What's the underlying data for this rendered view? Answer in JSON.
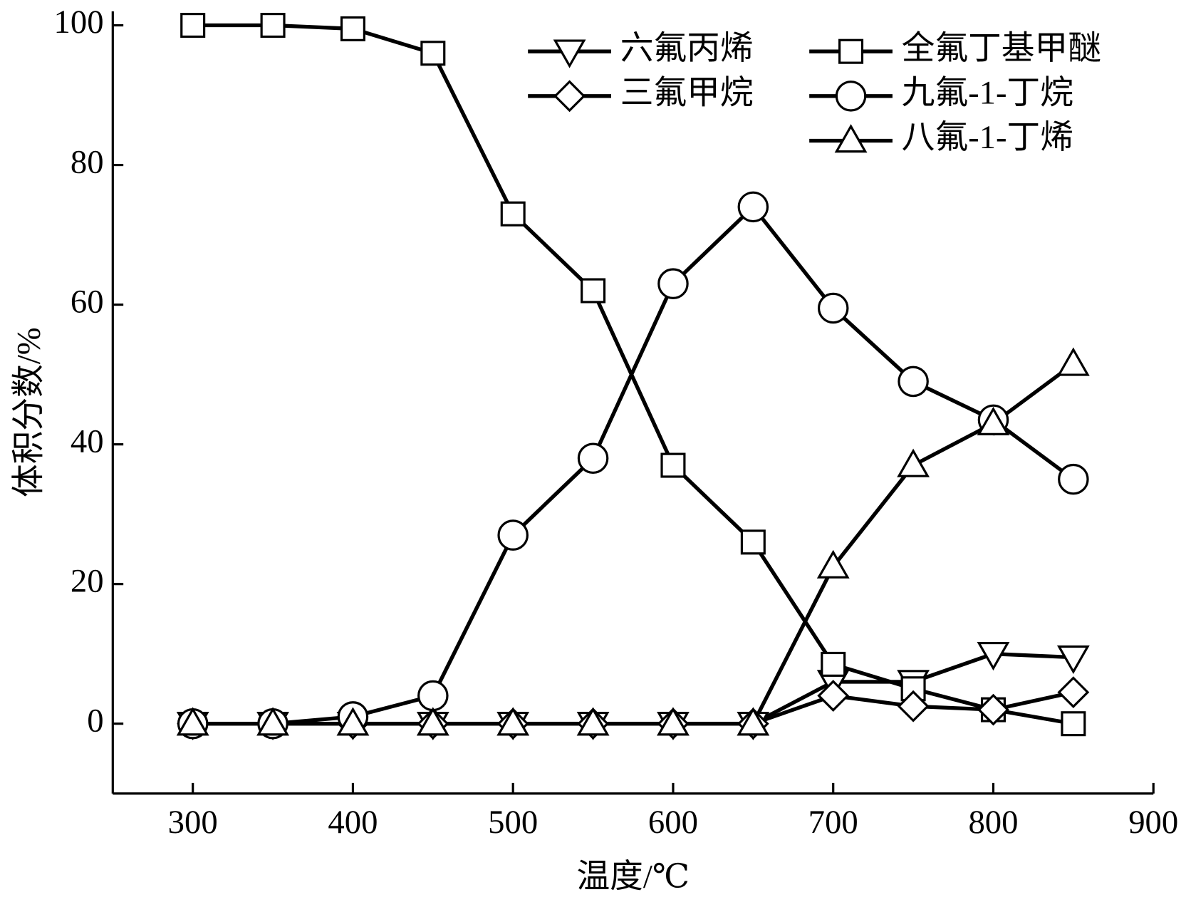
{
  "chart_data": {
    "type": "line",
    "xlabel": "温度/℃",
    "ylabel": "体积分数/%",
    "x": [
      300,
      350,
      400,
      450,
      500,
      550,
      600,
      650,
      700,
      750,
      800,
      850
    ],
    "series": [
      {
        "name": "六氟丙烯",
        "color": "#000000",
        "marker": "triangle-down",
        "values": [
          0,
          0,
          0,
          0,
          0,
          0,
          0,
          0,
          6,
          6,
          10,
          9.5
        ]
      },
      {
        "name": "全氟丁基甲醚",
        "color": "#000000",
        "marker": "square",
        "values": [
          100,
          100,
          99.5,
          96,
          73,
          62,
          37,
          26,
          8.5,
          5,
          2,
          0
        ]
      },
      {
        "name": "三氟甲烷",
        "color": "#000000",
        "marker": "diamond",
        "values": [
          0,
          0,
          0,
          0,
          0,
          0,
          0,
          0,
          4,
          2.5,
          2,
          4.5
        ]
      },
      {
        "name": "九氟-1-丁烷",
        "color": "#000000",
        "marker": "circle",
        "values": [
          0,
          0,
          1,
          4,
          27,
          38,
          63,
          74,
          59.5,
          49,
          43.5,
          35
        ]
      },
      {
        "name": "八氟-1-丁烯",
        "color": "#000000",
        "marker": "triangle-up",
        "values": [
          0,
          0,
          0,
          0,
          0,
          0,
          0,
          0,
          22.5,
          37,
          43,
          51.5
        ]
      }
    ],
    "xlim": [
      250,
      900
    ],
    "xticks": [
      300,
      400,
      500,
      600,
      700,
      800,
      900
    ],
    "ylim": [
      -10,
      102
    ],
    "yticks": [
      0,
      20,
      40,
      60,
      80,
      100
    ],
    "grid": false,
    "legend": "upper right"
  }
}
